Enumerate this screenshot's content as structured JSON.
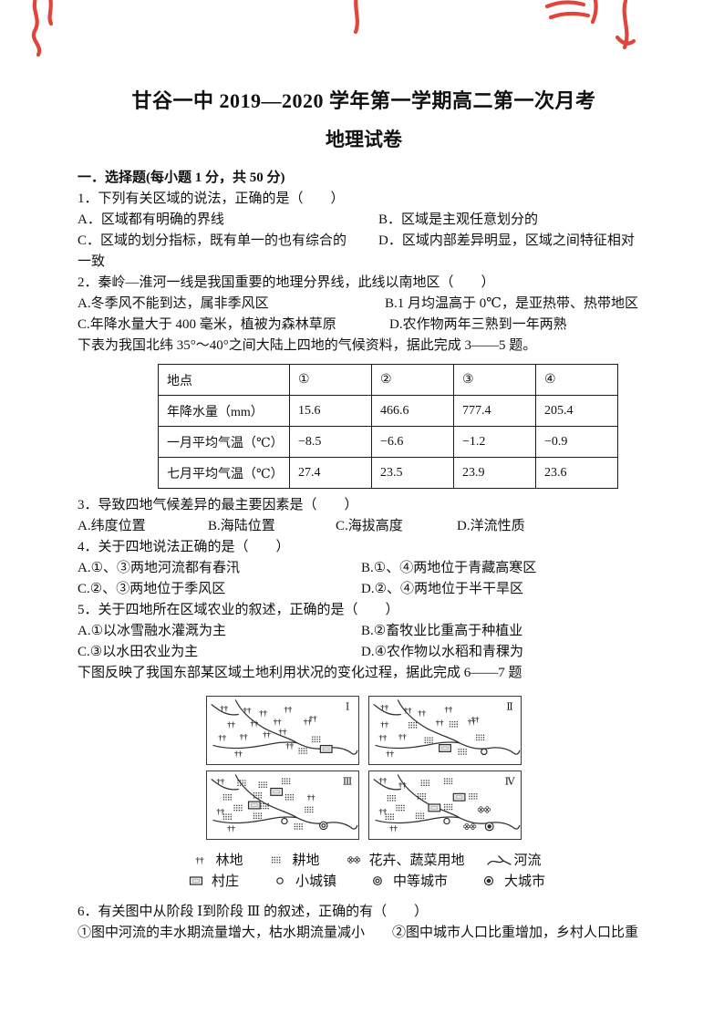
{
  "page": {
    "title_line1": "甘谷一中 2019—2020 学年第一学期高二第一次月考",
    "title_line2": "地理试卷",
    "section_heading": "一．选择题(每小题 1 分，共 50 分)"
  },
  "questions": {
    "q1": {
      "stem": "1．下列有关区域的说法，正确的是（　　）",
      "optA": "A．区域都有明确的界线",
      "optB": "B．区域是主观任意划分的",
      "optC": "C．区域的划分指标，既有单一的也有综合的",
      "optD": "D．区域内部差异明显，区域之间特征相对",
      "optD_cont": "一致"
    },
    "q2": {
      "stem": "2．秦岭—淮河一线是我国重要的地理分界线，此线以南地区（　　）",
      "optA": "A.冬季风不能到达，属非季风区",
      "optB": "B.1 月均温高于 0℃，是亚热带、热带地区",
      "optC": "C.年降水量大于 400 毫米，植被为森林草原",
      "optD": "D.农作物两年三熟到一年两熟"
    },
    "table_intro": "下表为我国北纬 35°～40°之间大陆上四地的气候资料，据此完成 3——5 题。",
    "q3": {
      "stem": "3．导致四地气候差异的最主要因素是（　　）",
      "optA": "A.纬度位置",
      "optB": "B.海陆位置",
      "optC": "C.海拔高度",
      "optD": "D.洋流性质"
    },
    "q4": {
      "stem": "4．关于四地说法正确的是（　　）",
      "optA": "A.①、③两地河流都有春汛",
      "optB": "B.①、④两地位于青藏高寒区",
      "optC": "C.②、③两地位于季风区",
      "optD": "D.②、④两地位于半干旱区"
    },
    "q5": {
      "stem": "5．关于四地所在区域农业的叙述，正确的是（　　）",
      "optA": "A.①以冰雪融水灌溉为主",
      "optB": "B.②畜牧业比重高于种植业",
      "optC": "C.③以水田农业为主",
      "optD": "D.④农作物以水稻和青稞为"
    },
    "figure_intro": "下图反映了我国东部某区域土地利用状况的变化过程，据此完成 6——7 题",
    "q6": {
      "stem": "6．有关图中从阶段 Ⅰ到阶段 Ⅲ 的叙述，正确的有（　　）",
      "line2": "①图中河流的丰水期流量增大，枯水期流量减小　　②图中城市人口比重增加，乡村人口比重"
    }
  },
  "climate_table": {
    "headers": [
      "地点",
      "①",
      "②",
      "③",
      "④"
    ],
    "rows": [
      [
        "年降水量（mm）",
        "15.6",
        "466.6",
        "777.4",
        "205.4"
      ],
      [
        "一月平均气温（℃）",
        "−8.5",
        "−6.6",
        "−1.2",
        "−0.9"
      ],
      [
        "七月平均气温（℃）",
        "27.4",
        "23.5",
        "23.9",
        "23.6"
      ]
    ]
  },
  "figure": {
    "panels": [
      {
        "label": "Ⅰ",
        "symbols": [
          [
            "forest",
            18,
            13
          ],
          [
            "forest",
            44,
            15
          ],
          [
            "forest",
            62,
            18
          ],
          [
            "forest",
            90,
            14
          ],
          [
            "forest",
            118,
            24
          ],
          [
            "forest",
            26,
            31
          ],
          [
            "forest",
            52,
            30
          ],
          [
            "forest",
            78,
            28
          ],
          [
            "forest",
            112,
            28
          ],
          [
            "forest",
            16,
            46
          ],
          [
            "forest",
            40,
            45
          ],
          [
            "forest",
            66,
            42
          ],
          [
            "forest",
            84,
            39
          ],
          [
            "forest",
            92,
            55
          ],
          [
            "forest",
            34,
            64
          ],
          [
            "farmland",
            122,
            48
          ],
          [
            "farmland",
            107,
            61
          ],
          [
            "village",
            133,
            59
          ]
        ]
      },
      {
        "label": "Ⅱ",
        "symbols": [
          [
            "forest",
            16,
            12
          ],
          [
            "forest",
            42,
            15
          ],
          [
            "forest",
            58,
            18
          ],
          [
            "forest",
            88,
            14
          ],
          [
            "forest",
            118,
            25
          ],
          [
            "forest",
            16,
            31
          ],
          [
            "forest",
            78,
            29
          ],
          [
            "forest",
            114,
            28
          ],
          [
            "forest",
            14,
            46
          ],
          [
            "forest",
            36,
            45
          ],
          [
            "forest",
            22,
            64
          ],
          [
            "farmland",
            48,
            32
          ],
          [
            "farmland",
            94,
            31
          ],
          [
            "farmland",
            66,
            49
          ],
          [
            "farmland",
            124,
            46
          ],
          [
            "farmland",
            104,
            62
          ],
          [
            "village",
            84,
            58
          ],
          [
            "town",
            128,
            62
          ]
        ]
      },
      {
        "label": "Ⅲ",
        "symbols": [
          [
            "forest",
            14,
            11
          ],
          [
            "forest",
            116,
            29
          ],
          [
            "forest",
            14,
            45
          ],
          [
            "forest",
            26,
            64
          ],
          [
            "farmland",
            38,
            13
          ],
          [
            "farmland",
            62,
            15
          ],
          [
            "farmland",
            88,
            11
          ],
          [
            "farmland",
            22,
            29
          ],
          [
            "farmland",
            56,
            27
          ],
          [
            "farmland",
            92,
            29
          ],
          [
            "farmland",
            34,
            41
          ],
          [
            "farmland",
            64,
            39
          ],
          [
            "farmland",
            22,
            51
          ],
          [
            "farmland",
            56,
            50
          ],
          [
            "farmland",
            114,
            43
          ],
          [
            "farmland",
            102,
            62
          ],
          [
            "village",
            77,
            23
          ],
          [
            "village",
            52,
            38
          ],
          [
            "town",
            86,
            56
          ],
          [
            "midcity",
            130,
            61
          ]
        ]
      },
      {
        "label": "Ⅳ",
        "symbols": [
          [
            "forest",
            14,
            10
          ],
          [
            "forest",
            36,
            15
          ],
          [
            "forest",
            14,
            45
          ],
          [
            "forest",
            26,
            64
          ],
          [
            "farmland",
            62,
            13
          ],
          [
            "farmland",
            88,
            11
          ],
          [
            "farmland",
            24,
            30
          ],
          [
            "farmland",
            58,
            28
          ],
          [
            "farmland",
            116,
            28
          ],
          [
            "farmland",
            34,
            41
          ],
          [
            "farmland",
            88,
            40
          ],
          [
            "farmland",
            22,
            51
          ],
          [
            "farmland",
            56,
            50
          ],
          [
            "village",
            100,
            29
          ],
          [
            "village",
            72,
            41
          ],
          [
            "town",
            86,
            56
          ],
          [
            "flower",
            128,
            43
          ],
          [
            "flower",
            112,
            62
          ],
          [
            "bigcity",
            134,
            62
          ]
        ]
      }
    ],
    "legend_row1": [
      {
        "icon": "forest",
        "label": "林地"
      },
      {
        "icon": "farmland",
        "label": "耕地"
      },
      {
        "icon": "flower",
        "label": "花卉、蔬菜用地"
      },
      {
        "icon": "river",
        "label": "河流"
      }
    ],
    "legend_row2": [
      {
        "icon": "village",
        "label": "村庄"
      },
      {
        "icon": "town",
        "label": "小城镇"
      },
      {
        "icon": "midcity",
        "label": "中等城市"
      },
      {
        "icon": "bigcity",
        "label": "大城市"
      }
    ]
  },
  "colors": {
    "paper": "#ffffff",
    "ink": "#111111",
    "red_ink": "#df352a"
  }
}
